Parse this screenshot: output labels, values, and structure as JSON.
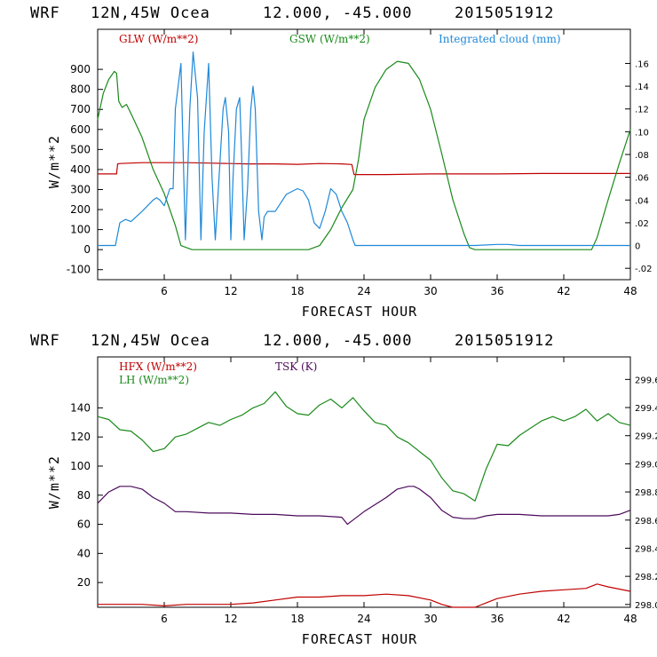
{
  "header1": {
    "model": "WRF",
    "location": "12N,45W Ocea",
    "coords": "12.000, -45.000",
    "date": "2015051912"
  },
  "header2": {
    "model": "WRF",
    "location": "12N,45W Ocea",
    "coords": "12.000, -45.000",
    "date": "2015051912"
  },
  "colors": {
    "red": "#c00000",
    "green": "#1a8a1a",
    "blue": "#1e88d8",
    "purple": "#4b0a5a"
  },
  "chart_data": [
    {
      "type": "line",
      "xlabel": "FORECAST HOUR",
      "ylabel": "W/m**2",
      "xlim": [
        0,
        48
      ],
      "ylim": [
        -150,
        1100
      ],
      "xticks": [
        6,
        12,
        18,
        24,
        30,
        36,
        42,
        48
      ],
      "yticks": [
        -100,
        0,
        100,
        200,
        300,
        400,
        500,
        600,
        700,
        800,
        900
      ],
      "y2lim": [
        -0.03,
        0.19
      ],
      "y2ticks": [
        -0.02,
        0,
        0.02,
        0.04,
        0.06,
        0.08,
        0.1,
        0.12,
        0.14,
        0.16
      ],
      "y2ticklabels": [
        "-.02",
        "0",
        ".02",
        ".04",
        ".06",
        ".08",
        ".10",
        ".12",
        ".14",
        ".16"
      ],
      "legend": [
        "GLW (W/m**2)",
        "GSW (W/m**2)",
        "Integrated cloud (mm)"
      ],
      "series": [
        {
          "name": "GLW (W/m**2)",
          "color": "red",
          "axis": "left",
          "x": [
            0,
            1.7,
            1.8,
            2,
            3,
            4,
            5,
            6,
            8,
            10,
            12,
            13.5,
            14,
            16,
            18,
            20,
            22,
            22.9,
            23.1,
            26,
            30,
            34,
            36,
            40,
            44,
            48
          ],
          "y": [
            378,
            378,
            428,
            430,
            432,
            434,
            434,
            434,
            434,
            432,
            430,
            428,
            428,
            428,
            426,
            430,
            428,
            425,
            375,
            375,
            378,
            378,
            378,
            380,
            380,
            380
          ]
        },
        {
          "name": "GSW (W/m**2)",
          "color": "green",
          "axis": "left",
          "x": [
            0,
            0.5,
            1,
            1.5,
            1.7,
            1.9,
            2.2,
            2.6,
            3,
            4,
            5,
            6,
            7,
            7.5,
            8.5,
            9,
            10,
            12,
            14,
            16,
            18,
            19,
            20,
            21,
            22,
            23,
            23.5,
            24,
            25,
            26,
            27,
            28,
            29,
            30,
            31,
            32,
            33,
            33.5,
            34,
            35,
            38,
            42,
            44,
            44.5,
            45,
            46,
            47,
            48
          ],
          "y": [
            650,
            780,
            850,
            890,
            880,
            740,
            710,
            725,
            680,
            560,
            400,
            280,
            120,
            20,
            0,
            0,
            0,
            0,
            0,
            0,
            0,
            0,
            20,
            100,
            210,
            300,
            450,
            650,
            810,
            900,
            940,
            930,
            850,
            700,
            480,
            250,
            80,
            10,
            0,
            0,
            0,
            0,
            0,
            0,
            60,
            250,
            430,
            600
          ]
        },
        {
          "name": "Integrated cloud (mm)",
          "color": "blue",
          "axis": "right",
          "x": [
            0,
            1.6,
            2,
            2.5,
            3,
            4,
            4.5,
            5,
            5.3,
            5.6,
            6,
            6.5,
            6.8,
            7,
            7.5,
            7.9,
            8.3,
            8.6,
            9,
            9.3,
            9.6,
            10,
            10.3,
            10.6,
            11,
            11.3,
            11.5,
            11.8,
            12,
            12.2,
            12.5,
            12.8,
            13,
            13.2,
            13.5,
            13.8,
            14,
            14.2,
            14.5,
            14.8,
            15,
            15.3,
            16,
            17,
            18,
            18.5,
            19,
            19.5,
            20,
            20.5,
            21,
            21.5,
            22,
            22.5,
            23,
            23.2,
            23.5,
            27,
            30,
            34,
            36,
            37,
            38,
            42,
            48
          ],
          "y": [
            0,
            0,
            0.02,
            0.023,
            0.021,
            0.03,
            0.035,
            0.04,
            0.042,
            0.04,
            0.035,
            0.05,
            0.05,
            0.12,
            0.16,
            0.005,
            0.12,
            0.17,
            0.13,
            0.005,
            0.1,
            0.16,
            0.06,
            0.005,
            0.07,
            0.12,
            0.13,
            0.1,
            0.005,
            0.06,
            0.12,
            0.13,
            0.07,
            0.005,
            0.05,
            0.12,
            0.14,
            0.12,
            0.03,
            0.005,
            0.025,
            0.03,
            0.03,
            0.045,
            0.05,
            0.048,
            0.04,
            0.02,
            0.015,
            0.03,
            0.05,
            0.045,
            0.03,
            0.02,
            0.005,
            0,
            0,
            0,
            0,
            0,
            0.001,
            0.001,
            0,
            0,
            0
          ]
        }
      ]
    },
    {
      "type": "line",
      "xlabel": "FORECAST HOUR",
      "ylabel": "W/m**2",
      "xlim": [
        0,
        48
      ],
      "ylim": [
        3,
        175
      ],
      "xticks": [
        6,
        12,
        18,
        24,
        30,
        36,
        42,
        48
      ],
      "yticks": [
        20,
        40,
        60,
        80,
        100,
        120,
        140
      ],
      "y2lim": [
        297.98,
        299.76
      ],
      "y2ticks": [
        298.0,
        298.2,
        298.4,
        298.6,
        298.8,
        299.0,
        299.2,
        299.4,
        299.6
      ],
      "y2ticklabels": [
        "298.0",
        "298.2",
        "298.4",
        "298.6",
        "298.8",
        "299.0",
        "299.2",
        "299.4",
        "299.6"
      ],
      "legend": [
        "HFX (W/m**2)",
        "LH (W/m**2)",
        "TSK (K)"
      ],
      "series": [
        {
          "name": "HFX (W/m**2)",
          "color": "red",
          "axis": "left",
          "x": [
            0,
            2,
            4,
            6,
            8,
            10,
            12,
            14,
            16,
            18,
            20,
            22,
            24,
            26,
            28,
            30,
            31,
            32,
            33,
            34,
            35,
            36,
            38,
            40,
            42,
            44,
            45,
            46,
            48
          ],
          "y": [
            5,
            5,
            5,
            4,
            5,
            5,
            5,
            6,
            8,
            10,
            10,
            11,
            11,
            12,
            11,
            8,
            5,
            3,
            3,
            3,
            6,
            9,
            12,
            14,
            15,
            16,
            19,
            17,
            14
          ]
        },
        {
          "name": "LH (W/m**2)",
          "color": "green",
          "axis": "left",
          "x": [
            0,
            1,
            2,
            3,
            4,
            5,
            6,
            7,
            8,
            9,
            10,
            11,
            12,
            13,
            14,
            15,
            16,
            17,
            18,
            19,
            20,
            21,
            22,
            23,
            24,
            25,
            26,
            27,
            28,
            29,
            30,
            31,
            32,
            33,
            34,
            35,
            36,
            37,
            38,
            39,
            40,
            41,
            42,
            43,
            44,
            45,
            46,
            47,
            48
          ],
          "y": [
            134,
            132,
            125,
            124,
            118,
            110,
            112,
            120,
            122,
            126,
            130,
            128,
            132,
            135,
            140,
            143,
            151,
            141,
            136,
            135,
            142,
            146,
            140,
            147,
            138,
            130,
            128,
            120,
            116,
            110,
            104,
            92,
            83,
            81,
            76,
            98,
            115,
            114,
            121,
            126,
            131,
            134,
            131,
            134,
            139,
            131,
            136,
            130,
            128
          ]
        },
        {
          "name": "TSK (K)",
          "color": "purple",
          "axis": "right",
          "x": [
            0,
            1,
            2,
            3,
            4,
            5,
            6,
            7,
            8,
            10,
            12,
            14,
            16,
            18,
            20,
            22,
            22.5,
            23,
            24,
            26,
            27,
            28,
            28.5,
            29,
            30,
            31,
            32,
            33,
            34,
            35,
            36,
            38,
            40,
            42,
            44,
            46,
            47,
            48
          ],
          "y": [
            298.72,
            298.8,
            298.84,
            298.84,
            298.82,
            298.76,
            298.72,
            298.66,
            298.66,
            298.65,
            298.65,
            298.64,
            298.64,
            298.63,
            298.63,
            298.62,
            298.57,
            298.6,
            298.66,
            298.76,
            298.82,
            298.84,
            298.84,
            298.82,
            298.76,
            298.67,
            298.62,
            298.61,
            298.61,
            298.63,
            298.64,
            298.64,
            298.63,
            298.63,
            298.63,
            298.63,
            298.64,
            298.67
          ]
        }
      ]
    }
  ]
}
